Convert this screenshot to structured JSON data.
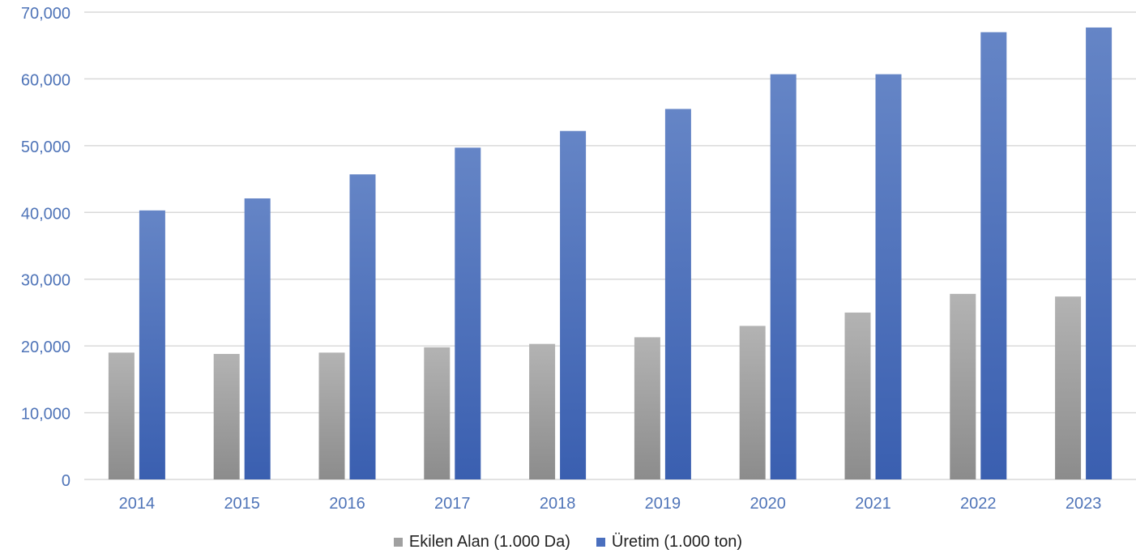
{
  "colors": {
    "axis_text": "#4f74b8",
    "gridline": "#d9d9d9",
    "series_gray_top": "#b3b3b3",
    "series_gray_bottom": "#8c8c8c",
    "series_blue_top": "#6585c6",
    "series_blue_bottom": "#3a5fb0",
    "legend_text": "#222222"
  },
  "chart_data": {
    "type": "bar",
    "title": "",
    "xlabel": "",
    "ylabel": "",
    "categories": [
      "2014",
      "2015",
      "2016",
      "2017",
      "2018",
      "2019",
      "2020",
      "2021",
      "2022",
      "2023"
    ],
    "series": [
      {
        "name": "Ekilen Alan (1.000 Da)",
        "color": "#a0a0a0",
        "values": [
          19000,
          18800,
          19000,
          19800,
          20300,
          21300,
          23000,
          25000,
          27800,
          27400
        ]
      },
      {
        "name": "Üretim (1.000 ton)",
        "color": "#4a6fbe",
        "values": [
          40300,
          42100,
          45700,
          49700,
          52200,
          55500,
          60700,
          60700,
          67000,
          67700
        ]
      }
    ],
    "ylim": [
      0,
      70000
    ],
    "yticks": [
      "0",
      "10,000",
      "20,000",
      "30,000",
      "40,000",
      "50,000",
      "60,000",
      "70,000"
    ],
    "ytick_values": [
      0,
      10000,
      20000,
      30000,
      40000,
      50000,
      60000,
      70000
    ],
    "grid": true,
    "legend_position": "bottom"
  }
}
